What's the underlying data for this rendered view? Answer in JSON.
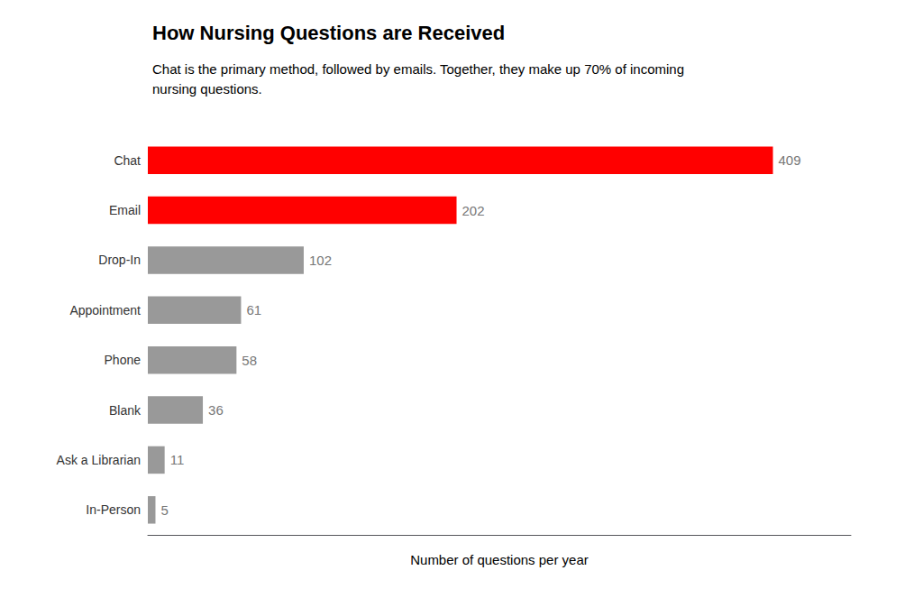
{
  "chart_data": {
    "type": "bar",
    "orientation": "horizontal",
    "title": "How Nursing Questions are Received",
    "subtitle": "Chat is the primary method, followed by emails. Together, they make up 70% of incoming\nnursing questions.",
    "xlabel": "Number of questions per year",
    "categories": [
      "Chat",
      "Email",
      "Drop-In",
      "Appointment",
      "Phone",
      "Blank",
      "Ask a Librarian",
      "In-Person"
    ],
    "values": [
      409,
      202,
      102,
      61,
      58,
      36,
      11,
      5
    ],
    "colors": [
      "#ff0000",
      "#ff0000",
      "#999999",
      "#999999",
      "#999999",
      "#999999",
      "#999999",
      "#999999"
    ],
    "xlim": [
      0,
      460
    ],
    "xticks": [],
    "tick_labels": "y",
    "data_labels": true,
    "grid": false
  }
}
